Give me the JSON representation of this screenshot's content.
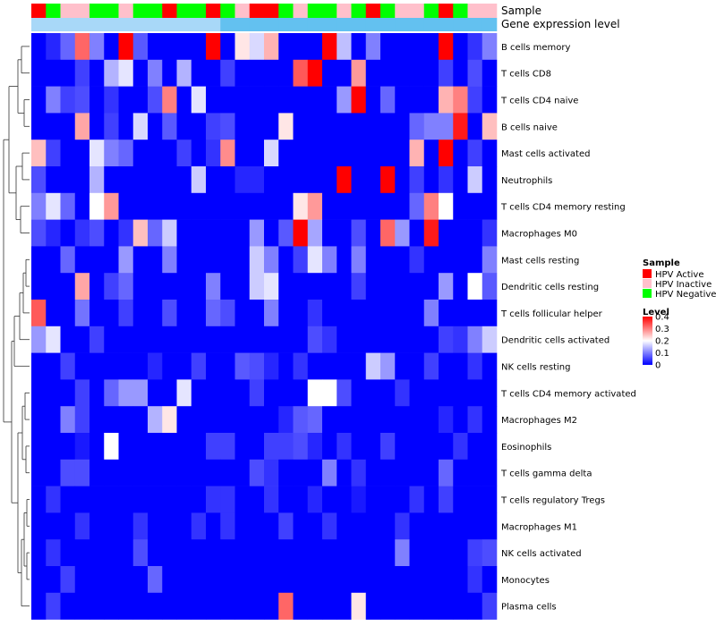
{
  "chart_data": {
    "type": "heatmap",
    "title": "",
    "annotation_tracks": [
      {
        "name": "Sample",
        "colors": [
          "A",
          "N",
          "I",
          "I",
          "N",
          "N",
          "I",
          "N",
          "N",
          "A",
          "N",
          "N",
          "A",
          "N",
          "I",
          "A",
          "A",
          "N",
          "I",
          "N",
          "N",
          "I",
          "N",
          "A",
          "N",
          "I",
          "I",
          "N",
          "A",
          "N",
          "I",
          "I"
        ]
      },
      {
        "name": "Gene expression level",
        "colors": [
          "B1",
          "B1",
          "B1",
          "B1",
          "B1",
          "B1",
          "B1",
          "B1",
          "B1",
          "B1",
          "B1",
          "B1",
          "B1",
          "B2",
          "B2",
          "B2",
          "B2",
          "B2",
          "B2",
          "B2",
          "B2",
          "B2",
          "B2",
          "B2",
          "B2",
          "B2",
          "B2",
          "B2",
          "B2",
          "B2",
          "B2",
          "B2"
        ]
      }
    ],
    "rows": [
      "B cells memory",
      "T cells CD8",
      "T cells CD4 naive",
      "B cells naive",
      "Mast cells activated",
      "Neutrophils",
      "T cells CD4 memory resting",
      "Macrophages M0",
      "Mast cells resting",
      "Dendritic cells resting",
      "T cells follicular helper",
      "Dendritic cells activated",
      "NK cells resting",
      "T cells CD4 memory activated",
      "Macrophages M2",
      "Eosinophils",
      "T cells gamma delta",
      "T cells regulatory  Tregs",
      "Macrophages M1",
      "NK cells activated",
      "Monocytes",
      "Plasma cells"
    ],
    "values": [
      [
        0.0,
        0.03,
        0.08,
        0.32,
        0.1,
        0.0,
        0.4,
        0.07,
        0.0,
        0.0,
        0.0,
        0.0,
        0.4,
        0.0,
        0.22,
        0.17,
        0.26,
        0.0,
        0.0,
        0.0,
        0.4,
        0.15,
        0.0,
        0.1,
        0.0,
        0.0,
        0.0,
        0.0,
        0.4,
        0.0,
        0.04,
        0.1
      ],
      [
        0.0,
        0.0,
        0.0,
        0.05,
        0.0,
        0.14,
        0.18,
        0.0,
        0.1,
        0.0,
        0.14,
        0.0,
        0.0,
        0.05,
        0.0,
        0.0,
        0.0,
        0.0,
        0.33,
        0.4,
        0.0,
        0.0,
        0.28,
        0.0,
        0.0,
        0.0,
        0.0,
        0.0,
        0.05,
        0.0,
        0.06,
        0.0
      ],
      [
        0.0,
        0.1,
        0.05,
        0.06,
        0.0,
        0.04,
        0.0,
        0.0,
        0.06,
        0.3,
        0.0,
        0.18,
        0.0,
        0.0,
        0.0,
        0.0,
        0.0,
        0.0,
        0.0,
        0.0,
        0.0,
        0.12,
        0.4,
        0.0,
        0.08,
        0.0,
        0.0,
        0.0,
        0.26,
        0.3,
        0.05,
        0.0
      ],
      [
        0.0,
        0.0,
        0.0,
        0.27,
        0.0,
        0.05,
        0.0,
        0.17,
        0.0,
        0.07,
        0.0,
        0.0,
        0.05,
        0.06,
        0.0,
        0.0,
        0.0,
        0.22,
        0.0,
        0.0,
        0.0,
        0.0,
        0.0,
        0.0,
        0.0,
        0.0,
        0.08,
        0.1,
        0.1,
        0.38,
        0.0,
        0.25
      ],
      [
        0.25,
        0.05,
        0.0,
        0.0,
        0.18,
        0.1,
        0.08,
        0.0,
        0.0,
        0.0,
        0.05,
        0.0,
        0.04,
        0.29,
        0.0,
        0.0,
        0.17,
        0.0,
        0.0,
        0.0,
        0.0,
        0.0,
        0.0,
        0.0,
        0.0,
        0.0,
        0.26,
        0.0,
        0.4,
        0.0,
        0.05,
        0.0
      ],
      [
        0.06,
        0.0,
        0.0,
        0.0,
        0.14,
        0.0,
        0.0,
        0.0,
        0.0,
        0.0,
        0.0,
        0.16,
        0.0,
        0.0,
        0.03,
        0.03,
        0.0,
        0.0,
        0.0,
        0.0,
        0.0,
        0.4,
        0.0,
        0.0,
        0.4,
        0.0,
        0.05,
        0.0,
        0.04,
        0.0,
        0.16,
        0.0
      ],
      [
        0.1,
        0.18,
        0.08,
        0.0,
        0.2,
        0.28,
        0.0,
        0.0,
        0.0,
        0.0,
        0.0,
        0.0,
        0.0,
        0.0,
        0.0,
        0.0,
        0.0,
        0.0,
        0.22,
        0.28,
        0.0,
        0.0,
        0.0,
        0.0,
        0.0,
        0.0,
        0.08,
        0.3,
        0.2,
        0.0,
        0.0,
        0.0
      ],
      [
        0.06,
        0.03,
        0.0,
        0.04,
        0.06,
        0.0,
        0.04,
        0.25,
        0.08,
        0.16,
        0.0,
        0.0,
        0.0,
        0.0,
        0.0,
        0.12,
        0.0,
        0.07,
        0.4,
        0.13,
        0.0,
        0.0,
        0.06,
        0.0,
        0.32,
        0.12,
        0.0,
        0.38,
        0.0,
        0.0,
        0.0,
        0.04
      ],
      [
        0.0,
        0.0,
        0.08,
        0.0,
        0.0,
        0.0,
        0.12,
        0.0,
        0.0,
        0.1,
        0.0,
        0.0,
        0.0,
        0.0,
        0.0,
        0.16,
        0.1,
        0.0,
        0.05,
        0.18,
        0.1,
        0.0,
        0.1,
        0.0,
        0.0,
        0.0,
        0.04,
        0.0,
        0.0,
        0.0,
        0.0,
        0.1
      ],
      [
        0.0,
        0.0,
        0.0,
        0.27,
        0.0,
        0.05,
        0.08,
        0.0,
        0.0,
        0.0,
        0.0,
        0.0,
        0.1,
        0.0,
        0.0,
        0.16,
        0.18,
        0.0,
        0.0,
        0.0,
        0.0,
        0.0,
        0.05,
        0.0,
        0.0,
        0.0,
        0.0,
        0.0,
        0.12,
        0.0,
        0.2,
        0.07
      ],
      [
        0.33,
        0.0,
        0.0,
        0.09,
        0.0,
        0.0,
        0.05,
        0.0,
        0.0,
        0.06,
        0.0,
        0.0,
        0.08,
        0.06,
        0.0,
        0.0,
        0.1,
        0.0,
        0.0,
        0.04,
        0.0,
        0.0,
        0.0,
        0.0,
        0.0,
        0.0,
        0.0,
        0.1,
        0.0,
        0.0,
        0.0,
        0.0
      ],
      [
        0.12,
        0.18,
        0.0,
        0.0,
        0.05,
        0.0,
        0.0,
        0.0,
        0.0,
        0.0,
        0.0,
        0.0,
        0.0,
        0.0,
        0.0,
        0.0,
        0.0,
        0.0,
        0.0,
        0.06,
        0.04,
        0.0,
        0.0,
        0.0,
        0.0,
        0.0,
        0.0,
        0.0,
        0.05,
        0.04,
        0.1,
        0.16
      ],
      [
        0.0,
        0.0,
        0.05,
        0.0,
        0.0,
        0.0,
        0.0,
        0.0,
        0.03,
        0.0,
        0.0,
        0.05,
        0.0,
        0.0,
        0.07,
        0.06,
        0.03,
        0.0,
        0.04,
        0.0,
        0.0,
        0.0,
        0.0,
        0.16,
        0.12,
        0.0,
        0.0,
        0.05,
        0.0,
        0.0,
        0.04,
        0.0
      ],
      [
        0.0,
        0.0,
        0.0,
        0.05,
        0.0,
        0.08,
        0.12,
        0.12,
        0.0,
        0.0,
        0.18,
        0.0,
        0.0,
        0.0,
        0.0,
        0.05,
        0.0,
        0.0,
        0.0,
        0.2,
        0.2,
        0.06,
        0.0,
        0.0,
        0.0,
        0.04,
        0.0,
        0.0,
        0.0,
        0.0,
        0.0,
        0.0
      ],
      [
        0.0,
        0.0,
        0.1,
        0.05,
        0.0,
        0.0,
        0.0,
        0.0,
        0.14,
        0.22,
        0.0,
        0.0,
        0.0,
        0.0,
        0.0,
        0.0,
        0.0,
        0.03,
        0.07,
        0.08,
        0.0,
        0.0,
        0.0,
        0.0,
        0.0,
        0.0,
        0.0,
        0.0,
        0.03,
        0.0,
        0.04,
        0.0
      ],
      [
        0.0,
        0.0,
        0.0,
        0.02,
        0.0,
        0.2,
        0.0,
        0.0,
        0.0,
        0.0,
        0.0,
        0.0,
        0.05,
        0.05,
        0.0,
        0.0,
        0.05,
        0.05,
        0.06,
        0.03,
        0.0,
        0.04,
        0.0,
        0.0,
        0.05,
        0.0,
        0.0,
        0.0,
        0.0,
        0.04,
        0.0,
        0.0
      ],
      [
        0.0,
        0.0,
        0.06,
        0.06,
        0.0,
        0.0,
        0.0,
        0.0,
        0.0,
        0.0,
        0.0,
        0.0,
        0.0,
        0.0,
        0.0,
        0.06,
        0.04,
        0.0,
        0.0,
        0.0,
        0.1,
        0.0,
        0.04,
        0.0,
        0.0,
        0.0,
        0.0,
        0.0,
        0.08,
        0.0,
        0.0,
        0.0
      ],
      [
        0.0,
        0.04,
        0.0,
        0.0,
        0.0,
        0.0,
        0.0,
        0.0,
        0.0,
        0.0,
        0.0,
        0.0,
        0.04,
        0.04,
        0.0,
        0.0,
        0.04,
        0.0,
        0.0,
        0.03,
        0.0,
        0.0,
        0.02,
        0.0,
        0.0,
        0.0,
        0.04,
        0.0,
        0.05,
        0.0,
        0.0,
        0.0
      ],
      [
        0.0,
        0.0,
        0.0,
        0.04,
        0.0,
        0.0,
        0.0,
        0.04,
        0.0,
        0.0,
        0.0,
        0.04,
        0.0,
        0.04,
        0.0,
        0.0,
        0.0,
        0.05,
        0.0,
        0.0,
        0.04,
        0.0,
        0.0,
        0.0,
        0.0,
        0.04,
        0.0,
        0.0,
        0.0,
        0.0,
        0.0,
        0.0
      ],
      [
        0.0,
        0.04,
        0.0,
        0.0,
        0.0,
        0.0,
        0.0,
        0.06,
        0.0,
        0.0,
        0.0,
        0.0,
        0.0,
        0.0,
        0.0,
        0.0,
        0.0,
        0.0,
        0.0,
        0.0,
        0.0,
        0.0,
        0.0,
        0.0,
        0.0,
        0.1,
        0.0,
        0.0,
        0.0,
        0.0,
        0.05,
        0.06
      ],
      [
        0.0,
        0.0,
        0.05,
        0.0,
        0.0,
        0.0,
        0.0,
        0.0,
        0.08,
        0.0,
        0.0,
        0.0,
        0.0,
        0.0,
        0.0,
        0.0,
        0.0,
        0.0,
        0.0,
        0.0,
        0.0,
        0.0,
        0.0,
        0.0,
        0.0,
        0.0,
        0.0,
        0.0,
        0.0,
        0.0,
        0.04,
        0.0
      ],
      [
        0.0,
        0.05,
        0.0,
        0.0,
        0.0,
        0.0,
        0.0,
        0.0,
        0.0,
        0.0,
        0.0,
        0.0,
        0.0,
        0.0,
        0.0,
        0.0,
        0.0,
        0.32,
        0.0,
        0.0,
        0.0,
        0.0,
        0.22,
        0.0,
        0.0,
        0.0,
        0.0,
        0.0,
        0.0,
        0.0,
        0.0,
        0.05
      ]
    ],
    "value_range": [
      0,
      0.4
    ],
    "legend_sample": {
      "title": "Sample",
      "entries": [
        {
          "label": "HPV Active",
          "color": "#ff0000"
        },
        {
          "label": "HPV Inactive",
          "color": "#ffc0cb"
        },
        {
          "label": "HPV Negative",
          "color": "#00ff00"
        }
      ]
    },
    "legend_level": {
      "title": "Level",
      "ticks": [
        "0.4",
        "0.3",
        "0.2",
        "0.1",
        "0"
      ],
      "tick_values": [
        0.4,
        0.3,
        0.2,
        0.1,
        0
      ]
    },
    "track_colors": {
      "A": "#ff0000",
      "I": "#ffc0cb",
      "N": "#00ff00",
      "B1": "#a8d8f8",
      "B2": "#63c1f0"
    },
    "scale_colors": {
      "low": "#0000ff",
      "mid": "#ffffff",
      "high": "#ff0000"
    }
  }
}
